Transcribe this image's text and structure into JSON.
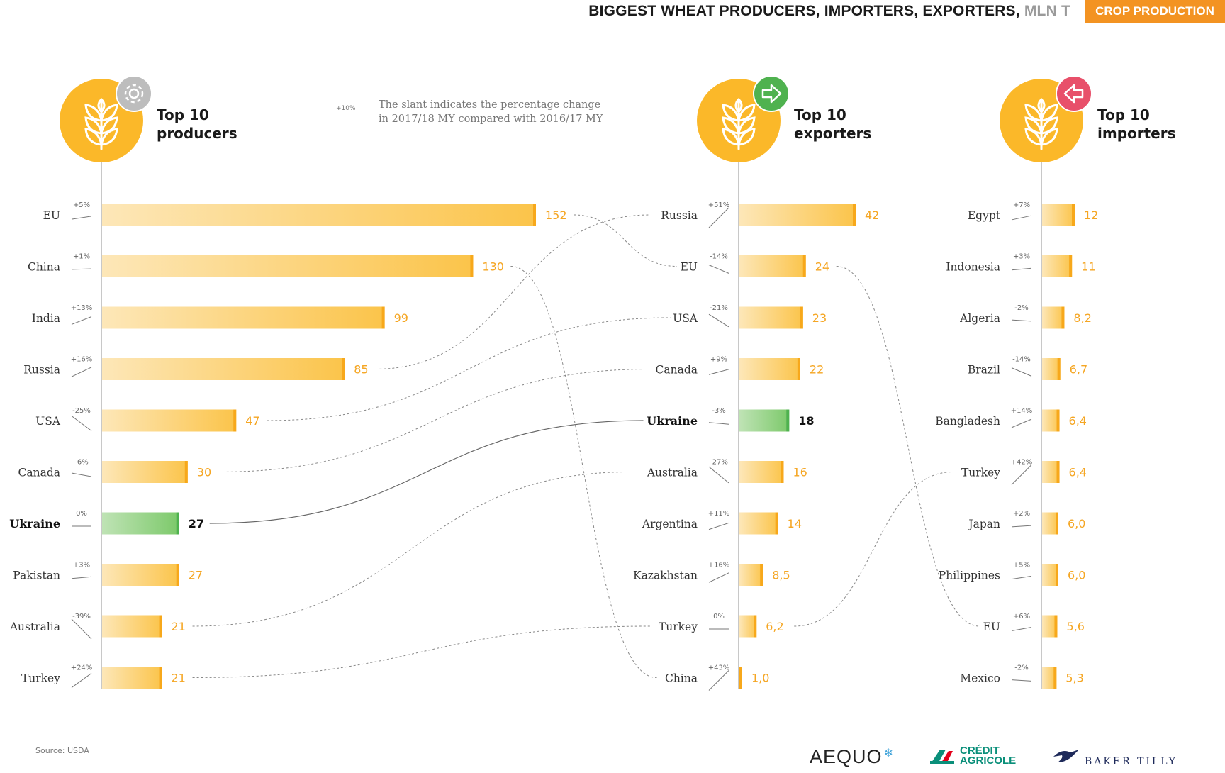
{
  "header": {
    "title": "BIGGEST WHEAT PRODUCERS, IMPORTERS, EXPORTERS,",
    "unit": "MLN T",
    "tag": "CROP PRODUCTION"
  },
  "legend": {
    "sample_change": "+10%",
    "text": "The slant indicates the percentage change\nin 2017/18 MY compared with 2016/17 MY"
  },
  "source": "Source: USDA",
  "logos": {
    "aequo": "AEQUO",
    "credit_agricole": "CRÉDIT\nAGRICOLE",
    "baker_tilly": "BAKER TILLY"
  },
  "colors": {
    "bar": "#fbc44a",
    "bar_fade": "#fde7b8",
    "bar_cap": "#f7a81b",
    "highlight": "#4fb24f",
    "highlight_fade": "#bfe3b5",
    "value_text": "#f5a623",
    "icon_circle": "#fbb829",
    "gear_badge": "#bdbdbd",
    "export_badge": "#4fb24f",
    "import_badge": "#e8506a"
  },
  "icons": {
    "producers": [
      "wheat-icon",
      "gear-icon"
    ],
    "exporters": [
      "wheat-icon",
      "arrow-right-icon"
    ],
    "importers": [
      "wheat-icon",
      "arrow-left-icon"
    ]
  },
  "chart_data": [
    {
      "type": "bar",
      "title": "Top 10\nproducers",
      "categories": [
        "EU",
        "China",
        "India",
        "Russia",
        "USA",
        "Canada",
        "Ukraine",
        "Pakistan",
        "Australia",
        "Turkey"
      ],
      "values": [
        152,
        130,
        99,
        85,
        47,
        30,
        27,
        27,
        21,
        21
      ],
      "value_labels": [
        "152",
        "130",
        "99",
        "85",
        "47",
        "30",
        "27",
        "27",
        "21",
        "21"
      ],
      "changes": [
        "+5%",
        "+1%",
        "+13%",
        "+16%",
        "-25%",
        "-6%",
        "0%",
        "+3%",
        "-39%",
        "+24%"
      ],
      "highlight": "Ukraine"
    },
    {
      "type": "bar",
      "title": "Top 10\nexporters",
      "categories": [
        "Russia",
        "EU",
        "USA",
        "Canada",
        "Ukraine",
        "Australia",
        "Argentina",
        "Kazakhstan",
        "Turkey",
        "China"
      ],
      "values": [
        42,
        24,
        23,
        22,
        18,
        16,
        14,
        8.5,
        6.2,
        1.0
      ],
      "value_labels": [
        "42",
        "24",
        "23",
        "22",
        "18",
        "16",
        "14",
        "8,5",
        "6,2",
        "1,0"
      ],
      "changes": [
        "+51%",
        "-14%",
        "-21%",
        "+9%",
        "-3%",
        "-27%",
        "+11%",
        "+16%",
        "0%",
        "+43%"
      ],
      "highlight": "Ukraine"
    },
    {
      "type": "bar",
      "title": "Top 10\nimporters",
      "categories": [
        "Egypt",
        "Indonesia",
        "Algeria",
        "Brazil",
        "Bangladesh",
        "Turkey",
        "Japan",
        "Philippines",
        "EU",
        "Mexico"
      ],
      "values": [
        12,
        11,
        8.2,
        6.7,
        6.4,
        6.4,
        6.0,
        6.0,
        5.6,
        5.3
      ],
      "value_labels": [
        "12",
        "11",
        "8,2",
        "6,7",
        "6,4",
        "6,4",
        "6,0",
        "6,0",
        "5,6",
        "5,3"
      ],
      "changes": [
        "+7%",
        "+3%",
        "-2%",
        "-14%",
        "+14%",
        "+42%",
        "+2%",
        "+5%",
        "+6%",
        "-2%"
      ],
      "highlight": ""
    }
  ]
}
